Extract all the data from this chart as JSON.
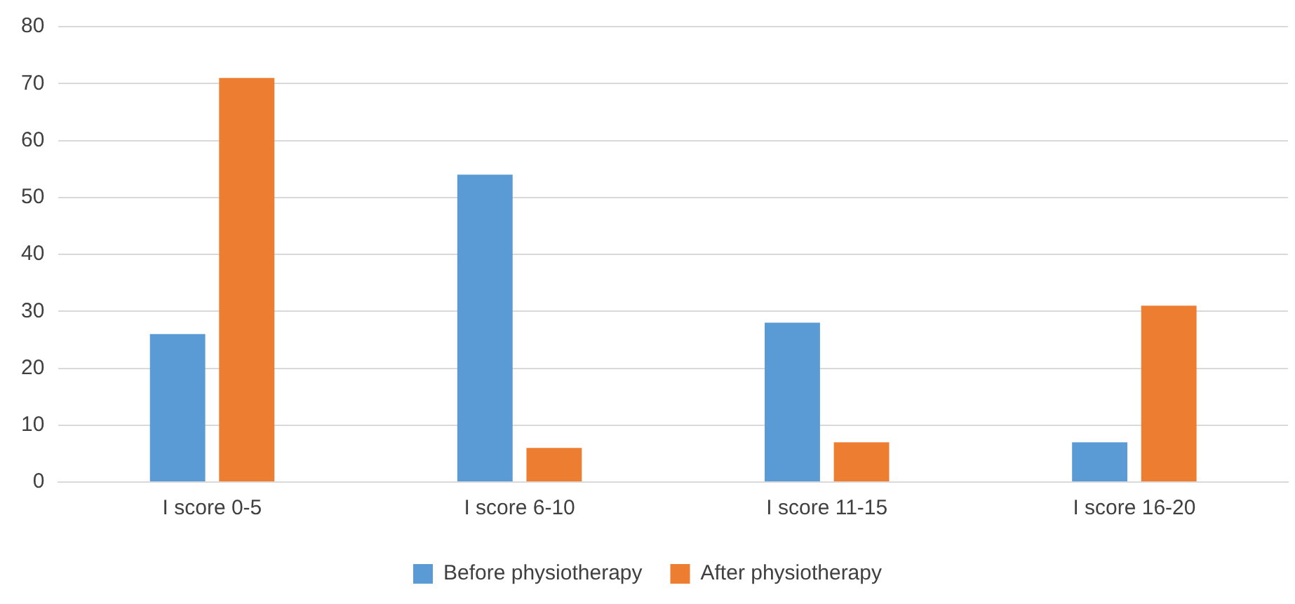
{
  "chart_data": {
    "type": "bar",
    "categories": [
      "I score 0-5",
      "I score 6-10",
      "I score 11-15",
      "I score 16-20"
    ],
    "series": [
      {
        "name": "Before physiotherapy",
        "color": "#5b9bd5",
        "values": [
          26,
          54,
          28,
          7
        ]
      },
      {
        "name": "After physiotherapy",
        "color": "#ed7d31",
        "values": [
          71,
          6,
          7,
          31
        ]
      }
    ],
    "ylim": [
      0,
      80
    ],
    "yticks": [
      0,
      10,
      20,
      30,
      40,
      50,
      60,
      70,
      80
    ],
    "grid": "y",
    "legend": "bottom"
  }
}
